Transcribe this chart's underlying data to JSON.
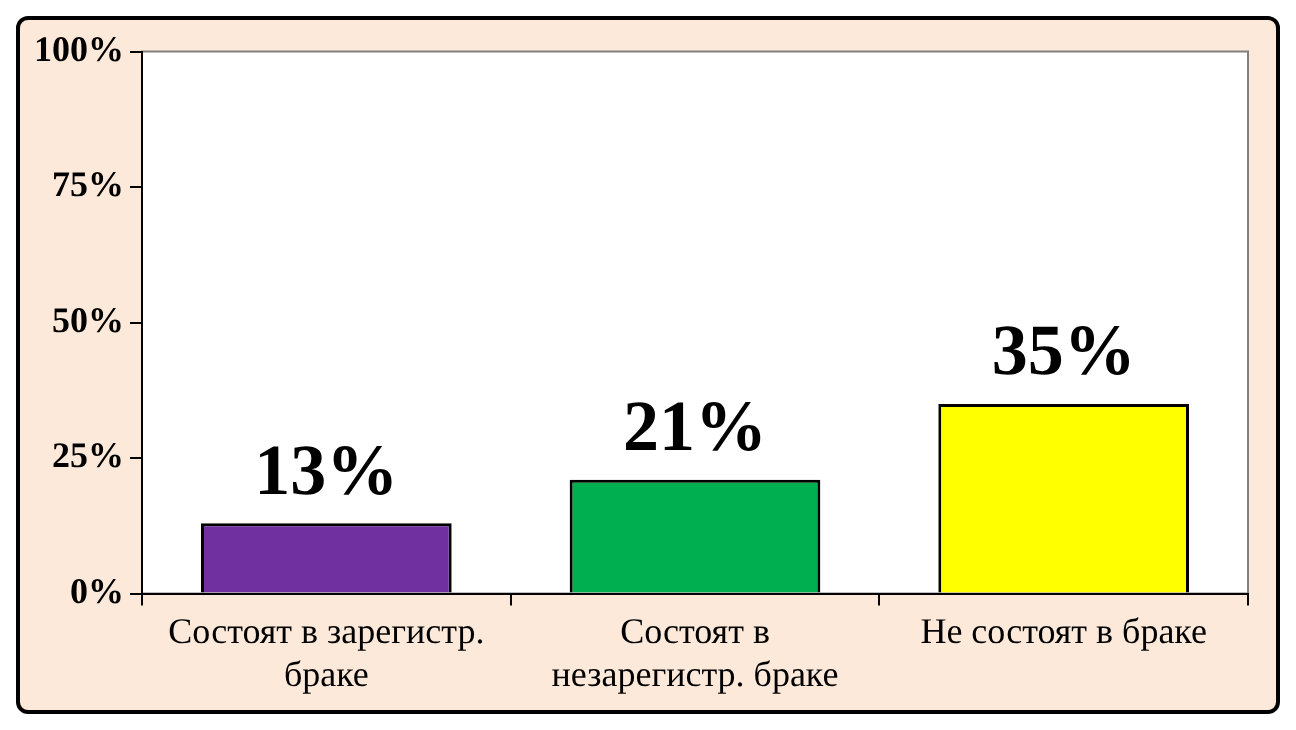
{
  "chart_data": {
    "type": "bar",
    "categories": [
      "Состоят в зарегистр. браке",
      "Состоят в незарегистр. браке",
      "Не состоят в браке"
    ],
    "values": [
      13,
      21,
      35
    ],
    "colors": [
      "#7030a0",
      "#00b050",
      "#ffff00"
    ],
    "value_labels": [
      "13%",
      "21%",
      "35%"
    ],
    "ylim": [
      0,
      100
    ],
    "yticks": [
      {
        "value": 0,
        "label": "0%"
      },
      {
        "value": 25,
        "label": "25%"
      },
      {
        "value": 50,
        "label": "50%"
      },
      {
        "value": 75,
        "label": "75%"
      },
      {
        "value": 100,
        "label": "100%"
      }
    ],
    "grid": false,
    "legend": false
  }
}
